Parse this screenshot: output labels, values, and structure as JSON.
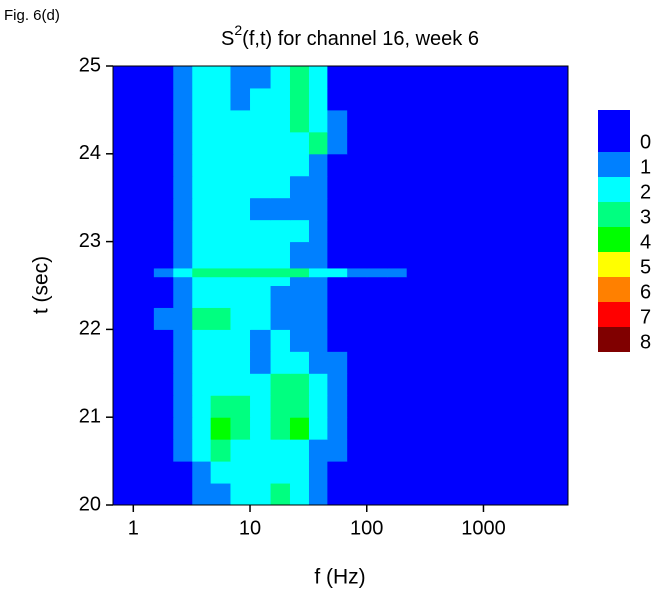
{
  "figure_label": "Fig. 6(d)",
  "chart_data": {
    "type": "heatmap",
    "title": {
      "base": "S",
      "superscript": "2",
      "rest": "(f,t) for channel 16, week 6"
    },
    "x_label": "f (Hz)",
    "y_label": "t (sec)",
    "x_scale": "log",
    "xlim": [
      0.67,
      5300
    ],
    "xticks": [
      1,
      10,
      100,
      1000
    ],
    "ylim": [
      20,
      25
    ],
    "yticks": [
      20,
      21,
      22,
      23,
      24,
      25
    ],
    "x_edges": [
      0.67,
      1,
      1.5,
      2.2,
      3.2,
      4.6,
      6.8,
      10,
      15,
      22,
      32,
      46,
      68,
      100,
      150,
      220,
      320,
      460,
      680,
      1000,
      5300
    ],
    "y_edges": [
      20,
      20.25,
      20.5,
      20.75,
      21,
      21.25,
      21.5,
      21.75,
      22,
      22.25,
      22.5,
      22.6,
      22.7,
      23,
      23.25,
      23.5,
      23.75,
      24,
      24.25,
      24.5,
      24.75,
      25
    ],
    "z": [
      [
        0,
        0,
        0,
        0,
        1,
        1,
        2,
        2,
        3,
        2,
        1,
        0,
        0,
        0,
        0,
        0,
        0,
        0,
        0,
        0
      ],
      [
        0,
        0,
        0,
        0,
        1,
        2,
        2,
        2,
        2,
        2,
        1,
        0,
        0,
        0,
        0,
        0,
        0,
        0,
        0,
        0
      ],
      [
        0,
        0,
        0,
        1,
        2,
        3,
        2,
        2,
        2,
        2,
        1,
        1,
        0,
        0,
        0,
        0,
        0,
        0,
        0,
        0
      ],
      [
        0,
        0,
        0,
        1,
        2,
        4,
        3,
        2,
        3,
        4,
        2,
        1,
        0,
        0,
        0,
        0,
        0,
        0,
        0,
        0
      ],
      [
        0,
        0,
        0,
        1,
        2,
        3,
        3,
        2,
        3,
        3,
        2,
        1,
        0,
        0,
        0,
        0,
        0,
        0,
        0,
        0
      ],
      [
        0,
        0,
        0,
        1,
        2,
        2,
        2,
        2,
        3,
        3,
        2,
        1,
        0,
        0,
        0,
        0,
        0,
        0,
        0,
        0
      ],
      [
        0,
        0,
        0,
        1,
        2,
        2,
        2,
        1,
        2,
        2,
        1,
        1,
        0,
        0,
        0,
        0,
        0,
        0,
        0,
        0
      ],
      [
        0,
        0,
        0,
        1,
        2,
        2,
        2,
        1,
        2,
        1,
        1,
        0,
        0,
        0,
        0,
        0,
        0,
        0,
        0,
        0
      ],
      [
        0,
        0,
        1,
        1,
        3,
        3,
        2,
        2,
        1,
        1,
        1,
        0,
        0,
        0,
        0,
        0,
        0,
        0,
        0,
        0
      ],
      [
        0,
        0,
        0,
        1,
        2,
        2,
        2,
        2,
        1,
        1,
        1,
        0,
        0,
        0,
        0,
        0,
        0,
        0,
        0,
        0
      ],
      [
        0,
        0,
        0,
        1,
        2,
        2,
        2,
        2,
        2,
        1,
        1,
        0,
        0,
        0,
        0,
        0,
        0,
        0,
        0,
        0
      ],
      [
        0,
        0,
        1,
        2,
        3,
        3,
        3,
        3,
        3,
        3,
        2,
        2,
        1,
        1,
        1,
        0,
        0,
        0,
        0,
        0
      ],
      [
        0,
        0,
        0,
        1,
        2,
        2,
        2,
        2,
        2,
        1,
        1,
        0,
        0,
        0,
        0,
        0,
        0,
        0,
        0,
        0
      ],
      [
        0,
        0,
        0,
        1,
        2,
        2,
        2,
        2,
        2,
        2,
        1,
        0,
        0,
        0,
        0,
        0,
        0,
        0,
        0,
        0
      ],
      [
        0,
        0,
        0,
        1,
        2,
        2,
        2,
        1,
        1,
        1,
        1,
        0,
        0,
        0,
        0,
        0,
        0,
        0,
        0,
        0
      ],
      [
        0,
        0,
        0,
        1,
        2,
        2,
        2,
        2,
        2,
        1,
        1,
        0,
        0,
        0,
        0,
        0,
        0,
        0,
        0,
        0
      ],
      [
        0,
        0,
        0,
        1,
        2,
        2,
        2,
        2,
        2,
        2,
        1,
        0,
        0,
        0,
        0,
        0,
        0,
        0,
        0,
        0
      ],
      [
        0,
        0,
        0,
        1,
        2,
        2,
        2,
        2,
        2,
        2,
        3,
        1,
        0,
        0,
        0,
        0,
        0,
        0,
        0,
        0
      ],
      [
        0,
        0,
        0,
        1,
        2,
        2,
        2,
        2,
        2,
        3,
        2,
        1,
        0,
        0,
        0,
        0,
        0,
        0,
        0,
        0
      ],
      [
        0,
        0,
        0,
        1,
        2,
        2,
        1,
        2,
        2,
        3,
        2,
        0,
        0,
        0,
        0,
        0,
        0,
        0,
        0,
        0
      ],
      [
        0,
        0,
        0,
        1,
        2,
        2,
        1,
        1,
        2,
        3,
        2,
        0,
        0,
        0,
        0,
        0,
        0,
        0,
        0,
        0
      ]
    ],
    "colorbar": {
      "levels": [
        0,
        1,
        2,
        3,
        4,
        5,
        6,
        7,
        8
      ],
      "colors": [
        "#0000ff",
        "#0080ff",
        "#00ffff",
        "#00ff80",
        "#00ff00",
        "#ffff00",
        "#ff8000",
        "#ff0000",
        "#800000"
      ]
    }
  }
}
